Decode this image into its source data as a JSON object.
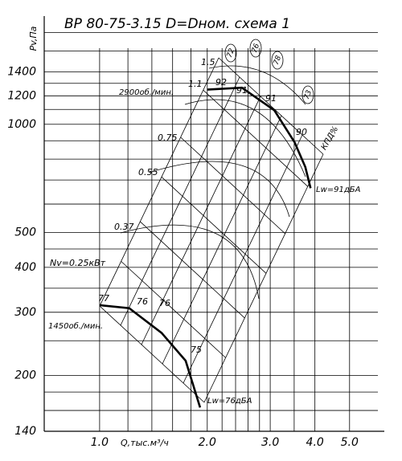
{
  "chart_data": {
    "type": "line",
    "title": "ВР 80-75-3.15 D=Dном. схема 1",
    "xlabel": "Q,тыс.м³/ч",
    "ylabel": "Pv,Па",
    "log_x": true,
    "log_y": true,
    "grid": true,
    "xlim": [
      0.7,
      6.0
    ],
    "ylim": [
      140,
      2000
    ],
    "xticks": [
      {
        "value": 1,
        "label": "1.0"
      },
      {
        "value": 2,
        "label": "2.0"
      },
      {
        "value": 3,
        "label": "3.0"
      },
      {
        "value": 4,
        "label": "4.0"
      },
      {
        "value": 5,
        "label": "5.0"
      }
    ],
    "yticks": [
      140,
      200,
      300,
      400,
      500,
      1000,
      1200,
      1400
    ],
    "minor_xticks": [
      1.2,
      1.4,
      1.6,
      1.8,
      2.2,
      2.4,
      2.6,
      2.8,
      3.5
    ],
    "minor_yticks": [
      160,
      180,
      250,
      350,
      450,
      600,
      700,
      800,
      900,
      1100,
      1300,
      1600,
      1800
    ],
    "series": [
      {
        "name": "2900об./мин.",
        "color": "#000000",
        "x": [
          2.0,
          2.5,
          3.08,
          3.51,
          3.76,
          3.89
        ],
        "values": [
          1249,
          1264,
          1094,
          891,
          761,
          664
        ]
      },
      {
        "name": "1450об./мин.",
        "color": "#000000",
        "x": [
          1.0,
          1.21,
          1.49,
          1.74,
          1.91
        ],
        "values": [
          314,
          308,
          263,
          220,
          163
        ]
      }
    ],
    "annotations": [
      "1.5",
      "1.1",
      "0.75",
      "0.55",
      "0.37",
      "Nv=0.25кВт",
      "92",
      "91",
      "91",
      "90",
      "77",
      "76",
      "76",
      "75",
      "Lw=91дБА",
      "Lw=76дБА",
      "72",
      "76",
      "78",
      "73",
      "КПД%"
    ]
  }
}
